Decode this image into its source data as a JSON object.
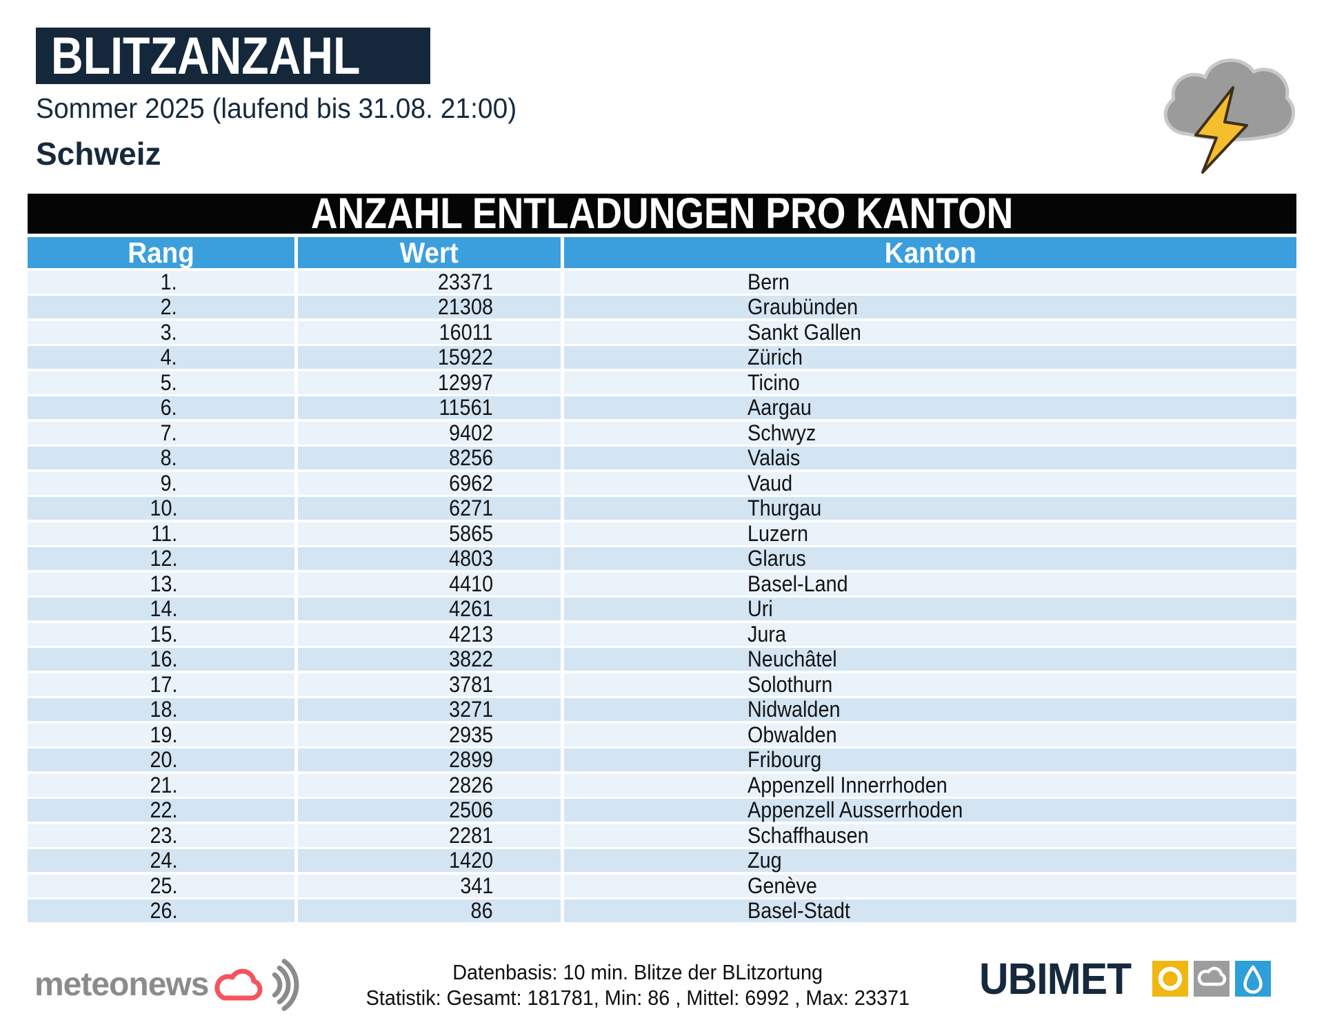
{
  "header": {
    "title": "BLITZANZAHL",
    "subtitle": "Sommer 2025 (laufend bis 31.08. 21:00)",
    "region": "Schweiz"
  },
  "chart_data": {
    "type": "table",
    "title": "ANZAHL ENTLADUNGEN PRO KANTON",
    "columns": [
      "Rang",
      "Wert",
      "Kanton"
    ],
    "rows": [
      {
        "rank": "1.",
        "value": "23371",
        "canton": "Bern"
      },
      {
        "rank": "2.",
        "value": "21308",
        "canton": "Graubünden"
      },
      {
        "rank": "3.",
        "value": "16011",
        "canton": "Sankt Gallen"
      },
      {
        "rank": "4.",
        "value": "15922",
        "canton": "Zürich"
      },
      {
        "rank": "5.",
        "value": "12997",
        "canton": "Ticino"
      },
      {
        "rank": "6.",
        "value": "11561",
        "canton": "Aargau"
      },
      {
        "rank": "7.",
        "value": "9402",
        "canton": "Schwyz"
      },
      {
        "rank": "8.",
        "value": "8256",
        "canton": "Valais"
      },
      {
        "rank": "9.",
        "value": "6962",
        "canton": "Vaud"
      },
      {
        "rank": "10.",
        "value": "6271",
        "canton": "Thurgau"
      },
      {
        "rank": "11.",
        "value": "5865",
        "canton": "Luzern"
      },
      {
        "rank": "12.",
        "value": "4803",
        "canton": "Glarus"
      },
      {
        "rank": "13.",
        "value": "4410",
        "canton": "Basel-Land"
      },
      {
        "rank": "14.",
        "value": "4261",
        "canton": "Uri"
      },
      {
        "rank": "15.",
        "value": "4213",
        "canton": "Jura"
      },
      {
        "rank": "16.",
        "value": "3822",
        "canton": "Neuchâtel"
      },
      {
        "rank": "17.",
        "value": "3781",
        "canton": "Solothurn"
      },
      {
        "rank": "18.",
        "value": "3271",
        "canton": "Nidwalden"
      },
      {
        "rank": "19.",
        "value": "2935",
        "canton": "Obwalden"
      },
      {
        "rank": "20.",
        "value": "2899",
        "canton": "Fribourg"
      },
      {
        "rank": "21.",
        "value": "2826",
        "canton": "Appenzell Innerrhoden"
      },
      {
        "rank": "22.",
        "value": "2506",
        "canton": "Appenzell Ausserrhoden"
      },
      {
        "rank": "23.",
        "value": "2281",
        "canton": "Schaffhausen"
      },
      {
        "rank": "24.",
        "value": "1420",
        "canton": "Zug"
      },
      {
        "rank": "25.",
        "value": "341",
        "canton": "Genève"
      },
      {
        "rank": "26.",
        "value": "86",
        "canton": "Basel-Stadt"
      }
    ],
    "stats": {
      "gesamt": 181781,
      "min": 86,
      "mittel": 6992,
      "max": 23371
    }
  },
  "footer": {
    "meteonews_label": "meteonews",
    "datenbasis_line": "Datenbasis: 10 min. Blitze der BLitzortung",
    "statistik_line": "Statistik: Gesamt: 181781, Min: 86 , Mittel: 6992 , Max: 23371",
    "ubimet_label_part1": "UBI",
    "ubimet_label_part2": "MET"
  },
  "icons": {
    "top_right": "storm-cloud-lightning-icon",
    "meteonews": [
      "cloud-outline-icon",
      "sound-waves-icon"
    ],
    "ubimet_squares": [
      "sun-icon",
      "cloud-icon",
      "raindrop-icon"
    ]
  },
  "colors": {
    "navy": "#16293D",
    "table_title_bg": "#050505",
    "header_blue": "#3B9FDE",
    "row_light": "#EAF2FA",
    "row_dark": "#D3E4F3",
    "logo_gray": "#8B8B8B",
    "logo_red": "#F4545E",
    "bolt_yellow": "#F5BE2E",
    "cloud_gray": "#9B9B9B",
    "ubimet_sun_yellow": "#F0B712",
    "ubimet_gray": "#9D9D9D",
    "ubimet_blue": "#2E9FD8"
  }
}
